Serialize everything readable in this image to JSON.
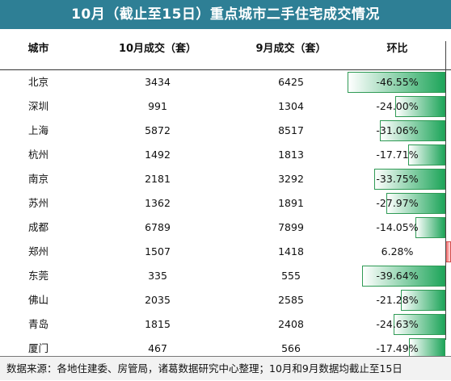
{
  "title": "10月（截止至15日）重点城市二手住宅成交情况",
  "headers": {
    "city": "城市",
    "oct": "10月成交（套）",
    "sep": "9月成交（套）",
    "chg": "环比"
  },
  "colors": {
    "title_bg": "#2e7f95",
    "neg_bar": "#1ea55a",
    "pos_bar": "#f06060"
  },
  "rows": [
    {
      "city": "北京",
      "oct": "3434",
      "sep": "6425",
      "chg": "-46.55%",
      "value": -46.55
    },
    {
      "city": "深圳",
      "oct": "991",
      "sep": "1304",
      "chg": "-24.00%",
      "value": -24.0
    },
    {
      "city": "上海",
      "oct": "5872",
      "sep": "8517",
      "chg": "-31.06%",
      "value": -31.06
    },
    {
      "city": "杭州",
      "oct": "1492",
      "sep": "1813",
      "chg": "-17.71%",
      "value": -17.71
    },
    {
      "city": "南京",
      "oct": "2181",
      "sep": "3292",
      "chg": "-33.75%",
      "value": -33.75
    },
    {
      "city": "苏州",
      "oct": "1362",
      "sep": "1891",
      "chg": "-27.97%",
      "value": -27.97
    },
    {
      "city": "成都",
      "oct": "6789",
      "sep": "7899",
      "chg": "-14.05%",
      "value": -14.05
    },
    {
      "city": "郑州",
      "oct": "1507",
      "sep": "1418",
      "chg": "6.28%",
      "value": 6.28
    },
    {
      "city": "东莞",
      "oct": "335",
      "sep": "555",
      "chg": "-39.64%",
      "value": -39.64
    },
    {
      "city": "佛山",
      "oct": "2035",
      "sep": "2585",
      "chg": "-21.28%",
      "value": -21.28
    },
    {
      "city": "青岛",
      "oct": "1815",
      "sep": "2408",
      "chg": "-24.63%",
      "value": -24.63
    },
    {
      "city": "厦门",
      "oct": "467",
      "sep": "566",
      "chg": "-17.49%",
      "value": -17.49
    }
  ],
  "footer": "数据来源：各地住建委、房管局，诸葛数据研究中心整理；10月和9月数据均截止至15日"
}
